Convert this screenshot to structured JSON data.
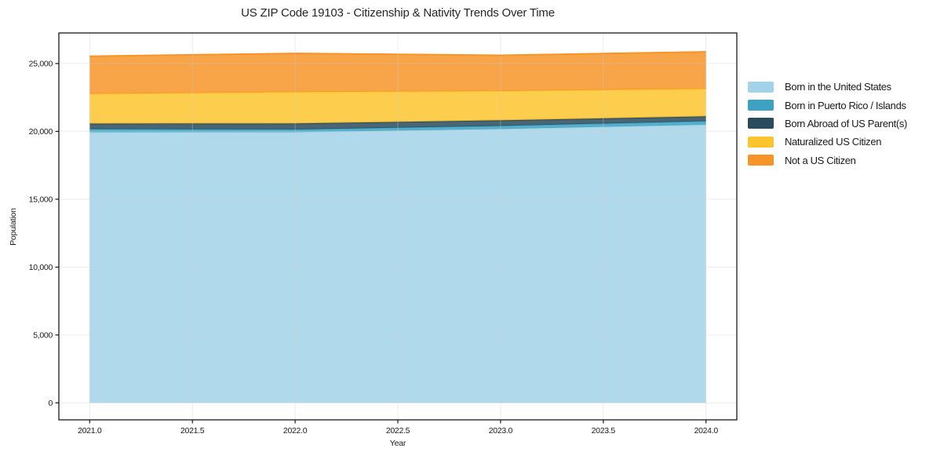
{
  "chart_data": {
    "type": "area",
    "stacked": true,
    "title": "US ZIP Code 19103 - Citizenship & Nativity Trends Over Time",
    "xlabel": "Year",
    "ylabel": "Population",
    "x": [
      2021,
      2022,
      2023,
      2024
    ],
    "series": [
      {
        "name": "Born in the United States",
        "color": "#A2D3E8",
        "values": [
          19940,
          19945,
          20175,
          20490
        ]
      },
      {
        "name": "Born in Puerto Rico / Islands",
        "color": "#3DA2C2",
        "values": [
          230,
          200,
          230,
          260
        ]
      },
      {
        "name": "Born Abroad of US Parent(s)",
        "color": "#2A4B5C",
        "values": [
          405,
          435,
          405,
          355
        ]
      },
      {
        "name": "Naturalized US Citizen",
        "color": "#FDC42F",
        "values": [
          2190,
          2320,
          2160,
          2035
        ]
      },
      {
        "name": "Not a US Citizen",
        "color": "#F79428",
        "values": [
          2770,
          2840,
          2635,
          2720
        ]
      }
    ],
    "xticks": {
      "values": [
        2021.0,
        2021.5,
        2022.0,
        2022.5,
        2023.0,
        2023.5,
        2024.0
      ],
      "labels": [
        "2021.0",
        "2021.5",
        "2022.0",
        "2022.5",
        "2023.0",
        "2023.5",
        "2024.0"
      ]
    },
    "yticks": {
      "values": [
        0,
        5000,
        10000,
        15000,
        20000,
        25000
      ],
      "labels": [
        "0",
        "5,000",
        "10,000",
        "15,000",
        "20,000",
        "25,000"
      ]
    },
    "xlim": [
      2020.85,
      2024.15
    ],
    "ylim": [
      -1250,
      27250
    ],
    "grid": true,
    "legend_position": "right-outside",
    "colors": {
      "frame": "#1a1a1a",
      "grid": "#cccccc",
      "tick_text": "#1a1a1a",
      "fill_opacity": 0.85
    }
  }
}
